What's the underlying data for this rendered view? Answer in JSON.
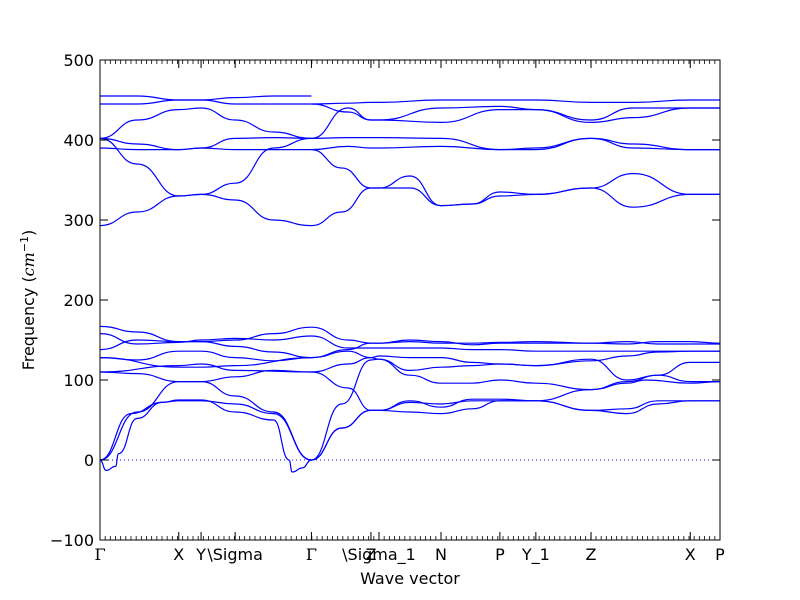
{
  "chart_data": {
    "type": "line",
    "title": "",
    "xlabel": "Wave vector",
    "ylabel": "Frequency ($cm^{-1}$)",
    "ylim": [
      -100,
      500
    ],
    "xlim": [
      0,
      1
    ],
    "yticks": [
      -100,
      0,
      100,
      200,
      300,
      400,
      500
    ],
    "ytick_labels": [
      "−100",
      "0",
      "100",
      "200",
      "300",
      "400",
      "500"
    ],
    "xticks": [
      {
        "label": "Γ",
        "x": 0.0
      },
      {
        "label": "X",
        "x": 0.127
      },
      {
        "label": "Y",
        "x": 0.163
      },
      {
        "label": "\\Sigma",
        "x": 0.218
      },
      {
        "label": "Γ",
        "x": 0.341
      },
      {
        "label": "Z",
        "x": 0.437
      },
      {
        "label": "\\Sigma_1",
        "x": 0.45
      },
      {
        "label": "N",
        "x": 0.55
      },
      {
        "label": "P",
        "x": 0.645
      },
      {
        "label": "Y_1",
        "x": 0.703
      },
      {
        "label": "Z",
        "x": 0.792
      },
      {
        "label": "X",
        "x": 0.952
      },
      {
        "label": "P",
        "x": 1.0
      }
    ],
    "zero_line": true,
    "series_color": "#0000ff",
    "series": [
      {
        "x": [
          0.0,
          0.05,
          0.1,
          0.127,
          0.163,
          0.218,
          0.28,
          0.341
        ],
        "y": [
          0,
          58,
          72,
          74,
          74,
          70,
          58,
          0
        ]
      },
      {
        "x": [
          0.0,
          0.01,
          0.025,
          0.03,
          0.06,
          0.1,
          0.127,
          0.163,
          0.218,
          0.28,
          0.305,
          0.31,
          0.326,
          0.341
        ],
        "y": [
          0,
          -13,
          -8,
          8,
          52,
          72,
          75,
          75,
          60,
          50,
          0,
          -15,
          -10,
          0
        ]
      },
      {
        "x": [
          0.0,
          0.06,
          0.127,
          0.163,
          0.218,
          0.28,
          0.341
        ],
        "y": [
          0,
          60,
          98,
          98,
          80,
          60,
          0
        ]
      },
      {
        "x": [
          0.0,
          0.06,
          0.127,
          0.163,
          0.218,
          0.28,
          0.341
        ],
        "y": [
          110,
          108,
          98,
          98,
          104,
          112,
          110
        ]
      },
      {
        "x": [
          0.0,
          0.06,
          0.127,
          0.163,
          0.218,
          0.28,
          0.341
        ],
        "y": [
          128,
          125,
          136,
          136,
          128,
          124,
          128
        ]
      },
      {
        "x": [
          0.0,
          0.06,
          0.127,
          0.163,
          0.218,
          0.28,
          0.341
        ],
        "y": [
          138,
          150,
          148,
          148,
          150,
          158,
          166
        ]
      },
      {
        "x": [
          0.0,
          0.06,
          0.127,
          0.163,
          0.218,
          0.28,
          0.341
        ],
        "y": [
          158,
          145,
          147,
          150,
          152,
          150,
          155
        ]
      },
      {
        "x": [
          0.0,
          0.06,
          0.127,
          0.163,
          0.218,
          0.28,
          0.341
        ],
        "y": [
          167,
          160,
          148,
          148,
          142,
          135,
          128
        ]
      },
      {
        "x": [
          0.0,
          0.127,
          0.163,
          0.218,
          0.341
        ],
        "y": [
          128,
          116,
          116,
          118,
          128
        ]
      },
      {
        "x": [
          0.0,
          0.127,
          0.163,
          0.218,
          0.341
        ],
        "y": [
          110,
          118,
          120,
          112,
          110
        ]
      },
      {
        "x": [
          0.341,
          0.39,
          0.437,
          0.45,
          0.5,
          0.55,
          0.6,
          0.645,
          0.703,
          0.792,
          0.85,
          0.9,
          0.952,
          1.0
        ],
        "y": [
          0,
          70,
          125,
          126,
          106,
          96,
          96,
          100,
          96,
          88,
          98,
          106,
          98,
          98
        ]
      },
      {
        "x": [
          0.341,
          0.4,
          0.437,
          0.45,
          0.5,
          0.55,
          0.6,
          0.645,
          0.703,
          0.792,
          0.85,
          0.9,
          0.952,
          1.0
        ],
        "y": [
          128,
          136,
          128,
          126,
          112,
          116,
          118,
          120,
          118,
          126,
          100,
          106,
          122,
          122
        ]
      },
      {
        "x": [
          0.341,
          0.4,
          0.437,
          0.45,
          0.5,
          0.55,
          0.6,
          0.645,
          0.703,
          0.792,
          0.85,
          0.9,
          0.952,
          1.0
        ],
        "y": [
          110,
          120,
          128,
          130,
          128,
          128,
          122,
          120,
          118,
          124,
          130,
          135,
          136,
          136
        ]
      },
      {
        "x": [
          0.341,
          0.4,
          0.437,
          0.45,
          0.5,
          0.55,
          0.6,
          0.645,
          0.703,
          0.792,
          0.85,
          0.9,
          0.952,
          1.0
        ],
        "y": [
          155,
          140,
          140,
          140,
          140,
          140,
          138,
          138,
          136,
          136,
          136,
          136,
          136,
          136
        ]
      },
      {
        "x": [
          0.341,
          0.4,
          0.437,
          0.45,
          0.5,
          0.55,
          0.6,
          0.645,
          0.703,
          0.792,
          0.85,
          0.9,
          0.952,
          1.0
        ],
        "y": [
          166,
          150,
          146,
          146,
          148,
          146,
          146,
          147,
          148,
          146,
          145,
          148,
          148,
          146
        ]
      },
      {
        "x": [
          0.341,
          0.4,
          0.437,
          0.45,
          0.5,
          0.55,
          0.6,
          0.645,
          0.703,
          0.792,
          0.85,
          0.9,
          0.952,
          1.0
        ],
        "y": [
          128,
          138,
          146,
          146,
          150,
          148,
          144,
          146,
          146,
          146,
          148,
          145,
          145,
          145
        ]
      },
      {
        "x": [
          0.341,
          0.39,
          0.437,
          0.45,
          0.5,
          0.55,
          0.6,
          0.645,
          0.703,
          0.792,
          0.85,
          0.9,
          0.952,
          1.0
        ],
        "y": [
          0,
          40,
          62,
          62,
          72,
          70,
          74,
          74,
          74,
          62,
          64,
          74,
          74,
          74
        ]
      },
      {
        "x": [
          0.341,
          0.39,
          0.437,
          0.45,
          0.5,
          0.55,
          0.6,
          0.645,
          0.703,
          0.792,
          0.85,
          0.9,
          0.952,
          1.0
        ],
        "y": [
          0,
          40,
          62,
          62,
          60,
          58,
          64,
          74,
          74,
          62,
          58,
          70,
          74,
          74
        ]
      },
      {
        "x": [
          0.341,
          0.4,
          0.437,
          0.45,
          0.5,
          0.55,
          0.6,
          0.645,
          0.703,
          0.792,
          0.85,
          0.88,
          0.952,
          1.0
        ],
        "y": [
          110,
          90,
          62,
          62,
          74,
          66,
          76,
          76,
          74,
          88,
          96,
          100,
          96,
          98
        ]
      },
      {
        "x": [
          0.0,
          0.06,
          0.127,
          0.163,
          0.218,
          0.28,
          0.341
        ],
        "y": [
          293,
          310,
          330,
          332,
          346,
          390,
          402
        ]
      },
      {
        "x": [
          0.0,
          0.06,
          0.127,
          0.163,
          0.218,
          0.28,
          0.341
        ],
        "y": [
          402,
          370,
          330,
          332,
          325,
          300,
          293
        ]
      },
      {
        "x": [
          0.0,
          0.06,
          0.127,
          0.163,
          0.218,
          0.28,
          0.341
        ],
        "y": [
          390,
          388,
          388,
          390,
          388,
          388,
          388
        ]
      },
      {
        "x": [
          0.0,
          0.06,
          0.127,
          0.163,
          0.218,
          0.28,
          0.341
        ],
        "y": [
          402,
          395,
          388,
          390,
          402,
          403,
          402
        ]
      },
      {
        "x": [
          0.0,
          0.06,
          0.127,
          0.163,
          0.218,
          0.28,
          0.341
        ],
        "y": [
          402,
          425,
          438,
          440,
          425,
          410,
          402
        ]
      },
      {
        "x": [
          0.0,
          0.06,
          0.127,
          0.163,
          0.218,
          0.28,
          0.341
        ],
        "y": [
          445,
          445,
          450,
          450,
          445,
          445,
          445
        ]
      },
      {
        "x": [
          0.0,
          0.06,
          0.127,
          0.163,
          0.218,
          0.28,
          0.341
        ],
        "y": [
          455,
          455,
          450,
          450,
          453,
          455,
          455
        ]
      },
      {
        "x": [
          0.341,
          0.39,
          0.437,
          0.45,
          0.5,
          0.55,
          0.6,
          0.645,
          0.703,
          0.792,
          0.86,
          0.952,
          1.0
        ],
        "y": [
          293,
          310,
          340,
          340,
          355,
          318,
          320,
          335,
          332,
          340,
          358,
          332,
          332
        ]
      },
      {
        "x": [
          0.341,
          0.39,
          0.437,
          0.45,
          0.5,
          0.55,
          0.6,
          0.645,
          0.703,
          0.792,
          0.86,
          0.952,
          1.0
        ],
        "y": [
          388,
          365,
          340,
          340,
          340,
          318,
          320,
          330,
          332,
          340,
          316,
          332,
          332
        ]
      },
      {
        "x": [
          0.341,
          0.4,
          0.437,
          0.45,
          0.55,
          0.645,
          0.703,
          0.792,
          0.86,
          0.952,
          1.0
        ],
        "y": [
          402,
          403,
          403,
          403,
          402,
          388,
          390,
          402,
          395,
          388,
          388
        ]
      },
      {
        "x": [
          0.341,
          0.4,
          0.437,
          0.45,
          0.55,
          0.645,
          0.703,
          0.792,
          0.86,
          0.952,
          1.0
        ],
        "y": [
          402,
          440,
          425,
          425,
          422,
          438,
          438,
          425,
          440,
          440,
          440
        ]
      },
      {
        "x": [
          0.341,
          0.4,
          0.437,
          0.45,
          0.55,
          0.645,
          0.703,
          0.792,
          0.86,
          0.952,
          1.0
        ],
        "y": [
          445,
          446,
          447,
          447,
          450,
          450,
          450,
          447,
          447,
          450,
          450
        ]
      },
      {
        "x": [
          0.341,
          0.4,
          0.437,
          0.45,
          0.55,
          0.645,
          0.703,
          0.792,
          0.86,
          0.952,
          1.0
        ],
        "y": [
          445,
          435,
          425,
          425,
          440,
          442,
          438,
          422,
          428,
          440,
          440
        ]
      },
      {
        "x": [
          0.341,
          0.4,
          0.437,
          0.45,
          0.55,
          0.645,
          0.703,
          0.792,
          0.86,
          0.952,
          1.0
        ],
        "y": [
          388,
          392,
          390,
          390,
          392,
          388,
          388,
          402,
          390,
          388,
          388
        ]
      }
    ]
  }
}
